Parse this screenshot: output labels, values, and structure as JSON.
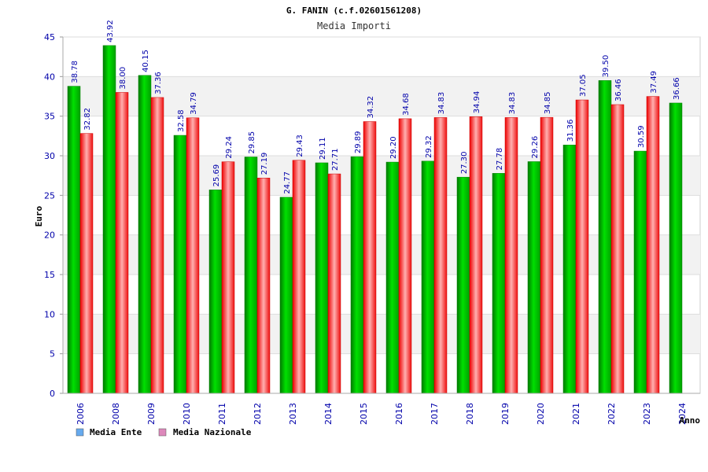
{
  "chart_data": {
    "type": "bar",
    "title": "G. FANIN (c.f.02601561208)",
    "subtitle": "Media Importi",
    "ylabel": "Euro",
    "xlabel": "Anno",
    "ylim": [
      0,
      45
    ],
    "yticks": [
      0,
      5,
      10,
      15,
      20,
      25,
      30,
      35,
      40,
      45
    ],
    "grid": "horizontal-bands",
    "legend_position": "bottom-left",
    "categories": [
      "2006",
      "2008",
      "2009",
      "2010",
      "2011",
      "2012",
      "2013",
      "2014",
      "2015",
      "2016",
      "2017",
      "2018",
      "2019",
      "2020",
      "2021",
      "2022",
      "2023",
      "2024"
    ],
    "series": [
      {
        "name": "Media Ente",
        "color": "#00c000",
        "legend_color": "#66aaee",
        "values": [
          38.78,
          43.92,
          40.15,
          32.58,
          25.69,
          29.85,
          24.77,
          29.11,
          29.89,
          29.2,
          29.32,
          27.3,
          27.78,
          29.26,
          31.36,
          39.5,
          30.59,
          36.66
        ],
        "labels": [
          "38.78",
          "43.92",
          "40.15",
          "32.58",
          "25.69",
          "29.85",
          "24.77",
          "29.11",
          "29.89",
          "29.20",
          "29.32",
          "27.30",
          "27.78",
          "29.26",
          "31.36",
          "39.50",
          "30.59",
          "36.66"
        ]
      },
      {
        "name": "Media Nazionale",
        "color": "#ff2020",
        "legend_color": "#dd88bb",
        "values": [
          32.82,
          38.0,
          37.36,
          34.79,
          29.24,
          27.19,
          29.43,
          27.71,
          34.32,
          34.68,
          34.83,
          34.94,
          34.83,
          34.85,
          37.05,
          36.46,
          37.49,
          null
        ],
        "labels": [
          "32.82",
          "38.00",
          "37.36",
          "34.79",
          "29.24",
          "27.19",
          "29.43",
          "27.71",
          "34.32",
          "34.68",
          "34.83",
          "34.94",
          "34.83",
          "34.85",
          "37.05",
          "36.46",
          "37.49",
          null
        ]
      }
    ]
  }
}
